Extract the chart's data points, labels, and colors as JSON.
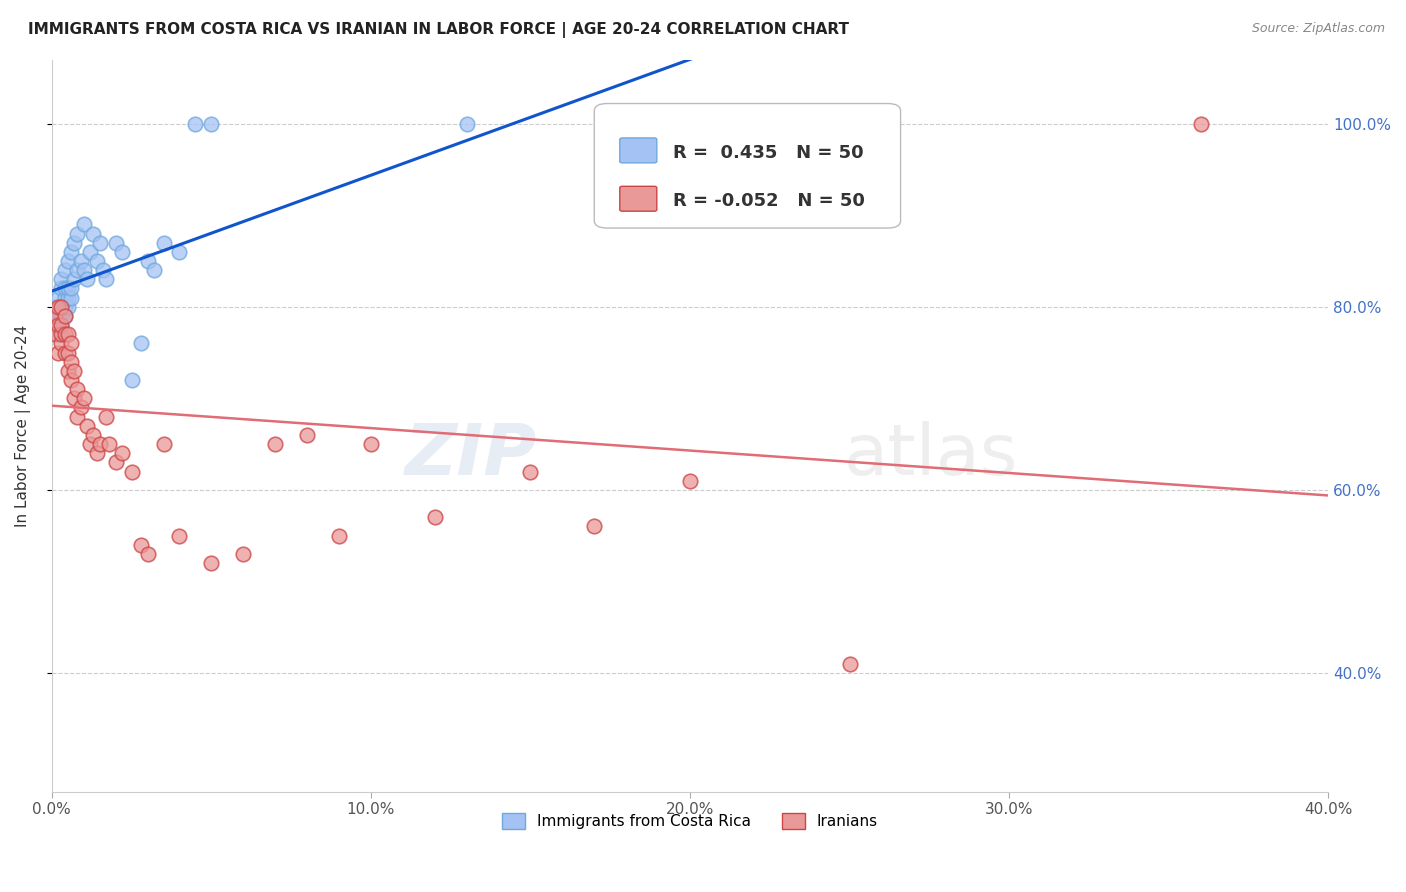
{
  "title": "IMMIGRANTS FROM COSTA RICA VS IRANIAN IN LABOR FORCE | AGE 20-24 CORRELATION CHART",
  "source": "Source: ZipAtlas.com",
  "ylabel": "In Labor Force | Age 20-24",
  "xlim": [
    0.0,
    0.4
  ],
  "ylim": [
    0.27,
    1.07
  ],
  "yticks": [
    0.4,
    0.6,
    0.8,
    1.0
  ],
  "ytick_labels": [
    "40.0%",
    "60.0%",
    "80.0%",
    "100.0%"
  ],
  "xticks": [
    0.0,
    0.1,
    0.2,
    0.3,
    0.4
  ],
  "xtick_labels": [
    "0.0%",
    "10.0%",
    "20.0%",
    "30.0%",
    "40.0%"
  ],
  "costa_rica_R": 0.435,
  "costa_rica_N": 50,
  "iranian_R": -0.052,
  "iranian_N": 50,
  "costa_rica_color": "#a4c2f4",
  "iranian_color": "#ea9999",
  "trend_costa_rica_color": "#1155cc",
  "trend_iranian_color": "#e06c75",
  "watermark_zip": "ZIP",
  "watermark_atlas": "atlas",
  "costa_rica_x": [
    0.001,
    0.001,
    0.001,
    0.002,
    0.002,
    0.002,
    0.002,
    0.003,
    0.003,
    0.003,
    0.003,
    0.003,
    0.004,
    0.004,
    0.004,
    0.004,
    0.004,
    0.005,
    0.005,
    0.005,
    0.005,
    0.006,
    0.006,
    0.006,
    0.007,
    0.007,
    0.008,
    0.008,
    0.009,
    0.01,
    0.01,
    0.011,
    0.012,
    0.013,
    0.014,
    0.015,
    0.016,
    0.017,
    0.02,
    0.022,
    0.025,
    0.028,
    0.03,
    0.032,
    0.035,
    0.04,
    0.045,
    0.05,
    0.13,
    0.19
  ],
  "costa_rica_y": [
    0.78,
    0.79,
    0.8,
    0.77,
    0.79,
    0.8,
    0.81,
    0.78,
    0.79,
    0.8,
    0.82,
    0.83,
    0.79,
    0.8,
    0.81,
    0.82,
    0.84,
    0.8,
    0.81,
    0.82,
    0.85,
    0.81,
    0.82,
    0.86,
    0.83,
    0.87,
    0.84,
    0.88,
    0.85,
    0.84,
    0.89,
    0.83,
    0.86,
    0.88,
    0.85,
    0.87,
    0.84,
    0.83,
    0.87,
    0.86,
    0.72,
    0.76,
    0.85,
    0.84,
    0.87,
    0.86,
    1.0,
    1.0,
    1.0,
    1.0
  ],
  "iranian_x": [
    0.001,
    0.001,
    0.002,
    0.002,
    0.002,
    0.003,
    0.003,
    0.003,
    0.003,
    0.004,
    0.004,
    0.004,
    0.005,
    0.005,
    0.005,
    0.006,
    0.006,
    0.006,
    0.007,
    0.007,
    0.008,
    0.008,
    0.009,
    0.01,
    0.011,
    0.012,
    0.013,
    0.014,
    0.015,
    0.017,
    0.018,
    0.02,
    0.022,
    0.025,
    0.028,
    0.03,
    0.035,
    0.04,
    0.05,
    0.06,
    0.07,
    0.08,
    0.09,
    0.1,
    0.12,
    0.15,
    0.17,
    0.2,
    0.25,
    0.36
  ],
  "iranian_y": [
    0.77,
    0.79,
    0.75,
    0.78,
    0.8,
    0.76,
    0.77,
    0.78,
    0.8,
    0.75,
    0.77,
    0.79,
    0.73,
    0.75,
    0.77,
    0.72,
    0.74,
    0.76,
    0.7,
    0.73,
    0.68,
    0.71,
    0.69,
    0.7,
    0.67,
    0.65,
    0.66,
    0.64,
    0.65,
    0.68,
    0.65,
    0.63,
    0.64,
    0.62,
    0.54,
    0.53,
    0.65,
    0.55,
    0.52,
    0.53,
    0.65,
    0.66,
    0.55,
    0.65,
    0.57,
    0.62,
    0.56,
    0.61,
    0.41,
    1.0
  ]
}
